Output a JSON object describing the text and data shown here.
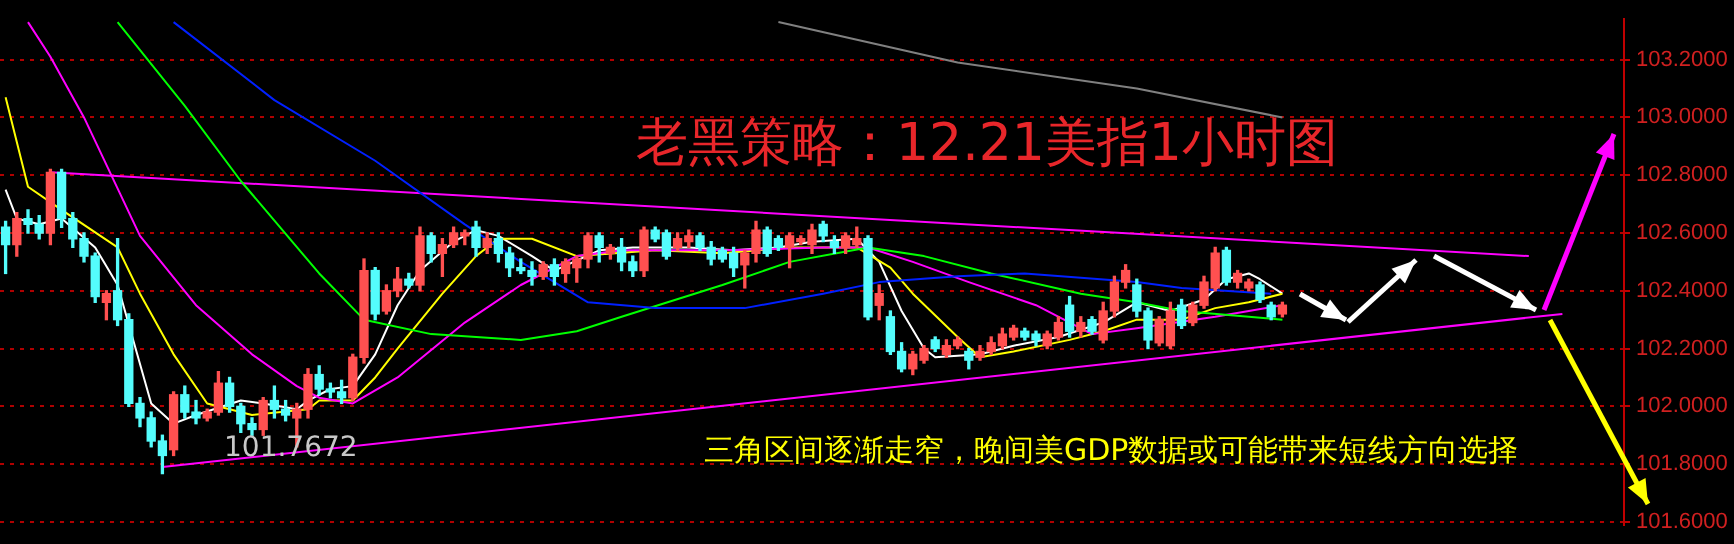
{
  "chart_data": {
    "type": "candlestick",
    "title": "老黑策略：12.21美指1小时图",
    "annotations": [
      "三角区间逐渐走窄，晚间美GDP数据或可能带来短线方向选择",
      "101.7672"
    ],
    "categories": [
      null,
      null,
      null,
      null,
      null,
      null,
      null,
      null,
      null,
      null,
      null,
      null,
      null,
      null,
      null,
      null,
      null,
      null,
      null,
      null,
      null,
      null,
      null,
      null,
      null,
      null,
      null,
      null,
      null,
      null,
      null,
      null,
      null,
      null,
      null,
      null,
      null,
      null,
      null,
      null,
      null,
      null,
      null,
      null,
      null,
      null,
      null,
      null,
      null,
      null,
      null,
      null,
      null,
      null,
      null,
      null,
      null,
      null,
      null,
      null,
      null,
      null,
      null,
      null,
      null,
      null,
      null,
      null,
      null,
      null,
      null,
      null,
      null,
      null,
      null,
      null,
      null,
      null,
      null,
      null,
      null,
      null,
      null,
      null,
      null,
      null,
      null,
      null,
      null,
      null,
      null,
      null,
      null,
      null,
      null,
      null,
      null,
      null,
      null,
      null,
      null,
      null,
      null,
      null,
      null,
      null,
      null,
      null,
      null,
      null,
      null,
      null,
      null,
      null,
      null,
      null,
      null,
      null,
      null,
      null,
      null,
      null,
      null,
      null,
      null,
      null,
      null,
      null,
      null,
      null,
      null,
      null,
      null,
      null,
      null,
      null,
      null,
      null,
      null,
      null,
      null,
      null,
      null,
      null,
      null
    ],
    "ohlc": [
      [
        102.62,
        102.64,
        102.46,
        102.56
      ],
      [
        102.56,
        102.67,
        102.52,
        102.65
      ],
      [
        102.65,
        102.68,
        102.6,
        102.63
      ],
      [
        102.63,
        102.66,
        102.58,
        102.6
      ],
      [
        102.6,
        102.82,
        102.56,
        102.81
      ],
      [
        102.81,
        102.82,
        102.62,
        102.65
      ],
      [
        102.65,
        102.67,
        102.55,
        102.58
      ],
      [
        102.58,
        102.6,
        102.5,
        102.52
      ],
      [
        102.52,
        102.53,
        102.36,
        102.38
      ],
      [
        102.36,
        102.4,
        102.3,
        102.39
      ],
      [
        102.4,
        102.58,
        102.28,
        102.3
      ],
      [
        102.3,
        102.32,
        102.0,
        102.01
      ],
      [
        102.01,
        102.03,
        101.93,
        101.96
      ],
      [
        101.96,
        101.98,
        101.86,
        101.88
      ],
      [
        101.88,
        101.9,
        101.7672,
        101.83
      ],
      [
        101.85,
        102.05,
        101.83,
        102.04
      ],
      [
        102.04,
        102.07,
        101.96,
        101.98
      ],
      [
        101.98,
        102.02,
        101.94,
        101.96
      ],
      [
        101.96,
        101.99,
        101.95,
        101.98
      ],
      [
        101.98,
        102.12,
        101.97,
        102.08
      ],
      [
        102.08,
        102.1,
        101.98,
        102.0
      ],
      [
        102.0,
        102.01,
        101.91,
        101.94
      ],
      [
        101.94,
        101.96,
        101.9,
        101.92
      ],
      [
        101.92,
        102.03,
        101.9,
        102.02
      ],
      [
        102.02,
        102.07,
        101.96,
        101.99
      ],
      [
        101.99,
        102.02,
        101.95,
        101.97
      ],
      [
        101.96,
        102.01,
        101.86,
        101.99
      ],
      [
        101.99,
        102.13,
        101.96,
        102.11
      ],
      [
        102.11,
        102.14,
        102.04,
        102.06
      ],
      [
        102.06,
        102.08,
        102.03,
        102.05
      ],
      [
        102.05,
        102.09,
        102.01,
        102.03
      ],
      [
        102.03,
        102.18,
        102.02,
        102.17
      ],
      [
        102.17,
        102.51,
        102.15,
        102.47
      ],
      [
        102.47,
        102.48,
        102.3,
        102.32
      ],
      [
        102.33,
        102.42,
        102.32,
        102.4
      ],
      [
        102.4,
        102.48,
        102.38,
        102.44
      ],
      [
        102.44,
        102.46,
        102.41,
        102.42
      ],
      [
        102.42,
        102.62,
        102.4,
        102.59
      ],
      [
        102.59,
        102.6,
        102.5,
        102.53
      ],
      [
        102.53,
        102.58,
        102.45,
        102.56
      ],
      [
        102.56,
        102.62,
        102.55,
        102.6
      ],
      [
        102.59,
        102.61,
        102.56,
        102.6
      ],
      [
        102.62,
        102.64,
        102.52,
        102.55
      ],
      [
        102.55,
        102.6,
        102.53,
        102.58
      ],
      [
        102.58,
        102.6,
        102.5,
        102.53
      ],
      [
        102.53,
        102.55,
        102.45,
        102.48
      ],
      [
        102.48,
        102.51,
        102.46,
        102.47
      ],
      [
        102.47,
        102.5,
        102.42,
        102.45
      ],
      [
        102.45,
        102.5,
        102.44,
        102.49
      ],
      [
        102.49,
        102.51,
        102.42,
        102.45
      ],
      [
        102.46,
        102.51,
        102.43,
        102.5
      ],
      [
        102.48,
        102.52,
        102.43,
        102.51
      ],
      [
        102.51,
        102.6,
        102.48,
        102.59
      ],
      [
        102.59,
        102.6,
        102.5,
        102.55
      ],
      [
        102.53,
        102.56,
        102.51,
        102.55
      ],
      [
        102.55,
        102.58,
        102.47,
        102.5
      ],
      [
        102.5,
        102.52,
        102.45,
        102.47
      ],
      [
        102.47,
        102.62,
        102.45,
        102.61
      ],
      [
        102.61,
        102.62,
        102.57,
        102.58
      ],
      [
        102.6,
        102.61,
        102.51,
        102.52
      ],
      [
        102.55,
        102.6,
        102.54,
        102.58
      ],
      [
        102.57,
        102.61,
        102.55,
        102.59
      ],
      [
        102.59,
        102.6,
        102.54,
        102.55
      ],
      [
        102.55,
        102.57,
        102.49,
        102.51
      ],
      [
        102.54,
        102.55,
        102.5,
        102.51
      ],
      [
        102.53,
        102.55,
        102.45,
        102.48
      ],
      [
        102.49,
        102.54,
        102.41,
        102.53
      ],
      [
        102.53,
        102.64,
        102.5,
        102.61
      ],
      [
        102.61,
        102.62,
        102.52,
        102.53
      ],
      [
        102.58,
        102.59,
        102.54,
        102.55
      ],
      [
        102.55,
        102.6,
        102.48,
        102.59
      ],
      [
        102.57,
        102.59,
        102.56,
        102.58
      ],
      [
        102.56,
        102.63,
        102.53,
        102.61
      ],
      [
        102.63,
        102.64,
        102.57,
        102.59
      ],
      [
        102.57,
        102.59,
        102.53,
        102.55
      ],
      [
        102.55,
        102.6,
        102.53,
        102.59
      ],
      [
        102.56,
        102.62,
        102.55,
        102.58
      ],
      [
        102.58,
        102.59,
        102.3,
        102.31
      ],
      [
        102.35,
        102.42,
        102.3,
        102.39
      ],
      [
        102.31,
        102.33,
        102.18,
        102.19
      ],
      [
        102.19,
        102.22,
        102.12,
        102.13
      ],
      [
        102.13,
        102.19,
        102.11,
        102.18
      ],
      [
        102.16,
        102.21,
        102.15,
        102.2
      ],
      [
        102.23,
        102.24,
        102.19,
        102.2
      ],
      [
        102.18,
        102.23,
        102.17,
        102.21
      ],
      [
        102.21,
        102.24,
        102.2,
        102.23
      ],
      [
        102.19,
        102.2,
        102.13,
        102.16
      ],
      [
        102.17,
        102.21,
        102.16,
        102.19
      ],
      [
        102.19,
        102.24,
        102.18,
        102.22
      ],
      [
        102.21,
        102.27,
        102.2,
        102.25
      ],
      [
        102.24,
        102.28,
        102.23,
        102.27
      ],
      [
        102.26,
        102.27,
        102.23,
        102.24
      ],
      [
        102.25,
        102.26,
        102.21,
        102.23
      ],
      [
        102.21,
        102.26,
        102.2,
        102.25
      ],
      [
        102.24,
        102.31,
        102.23,
        102.29
      ],
      [
        102.35,
        102.38,
        102.24,
        102.26
      ],
      [
        102.26,
        102.31,
        102.24,
        102.29
      ],
      [
        102.3,
        102.31,
        102.25,
        102.26
      ],
      [
        102.23,
        102.36,
        102.22,
        102.33
      ],
      [
        102.33,
        102.45,
        102.31,
        102.43
      ],
      [
        102.43,
        102.49,
        102.41,
        102.47
      ],
      [
        102.42,
        102.44,
        102.31,
        102.33
      ],
      [
        102.33,
        102.34,
        102.2,
        102.23
      ],
      [
        102.22,
        102.31,
        102.21,
        102.3
      ],
      [
        102.21,
        102.36,
        102.2,
        102.33
      ],
      [
        102.35,
        102.37,
        102.27,
        102.28
      ],
      [
        102.29,
        102.36,
        102.28,
        102.35
      ],
      [
        102.35,
        102.45,
        102.34,
        102.43
      ],
      [
        102.41,
        102.55,
        102.4,
        102.53
      ],
      [
        102.54,
        102.55,
        102.42,
        102.43
      ],
      [
        102.43,
        102.47,
        102.41,
        102.46
      ],
      [
        102.41,
        102.44,
        102.4,
        102.43
      ],
      [
        102.42,
        102.43,
        102.36,
        102.37
      ],
      [
        102.35,
        102.36,
        102.3,
        102.31
      ],
      [
        102.32,
        102.36,
        102.31,
        102.35
      ],
      null,
      null,
      null,
      null,
      null,
      null,
      null,
      null,
      null,
      null,
      null,
      null,
      null,
      null,
      null,
      null,
      null,
      null,
      null,
      null,
      null,
      null,
      null,
      null,
      null,
      null,
      null,
      null,
      null,
      null
    ],
    "colors": [
      "#54fcfc",
      "#ff5050",
      "#54fcfc",
      "#54fcfc",
      "#ff5050",
      "#54fcfc",
      "#54fcfc",
      "#54fcfc",
      "#54fcfc",
      "#ff5050",
      "#54fcfc",
      "#54fcfc",
      "#54fcfc",
      "#54fcfc",
      "#54fcfc",
      "#ff5050",
      "#54fcfc",
      "#54fcfc",
      "#ff5050",
      "#ff5050",
      "#54fcfc",
      "#54fcfc",
      "#54fcfc",
      "#ff5050",
      "#54fcfc",
      "#54fcfc",
      "#ff5050",
      "#ff5050",
      "#54fcfc",
      "#54fcfc",
      "#54fcfc",
      "#ff5050",
      "#ff5050",
      "#54fcfc",
      "#ff5050",
      "#ff5050",
      "#54fcfc",
      "#ff5050",
      "#54fcfc",
      "#ff5050",
      "#ff5050",
      "#ff5050",
      "#54fcfc",
      "#ff5050",
      "#54fcfc",
      "#54fcfc",
      "#54fcfc",
      "#54fcfc",
      "#ff5050",
      "#54fcfc",
      "#ff5050",
      "#ff5050",
      "#ff5050",
      "#54fcfc",
      "#ff5050",
      "#54fcfc",
      "#54fcfc",
      "#ff5050",
      "#54fcfc",
      "#54fcfc",
      "#ff5050",
      "#ff5050",
      "#54fcfc",
      "#54fcfc",
      "#54fcfc",
      "#54fcfc",
      "#ff5050",
      "#ff5050",
      "#54fcfc",
      "#54fcfc",
      "#ff5050",
      "#ff5050",
      "#ff5050",
      "#54fcfc",
      "#54fcfc",
      "#ff5050",
      "#ff5050",
      "#54fcfc",
      "#ff5050",
      "#54fcfc",
      "#54fcfc",
      "#ff5050",
      "#ff5050",
      "#54fcfc",
      "#ff5050",
      "#ff5050",
      "#54fcfc",
      "#ff5050",
      "#ff5050",
      "#ff5050",
      "#ff5050",
      "#54fcfc",
      "#54fcfc",
      "#ff5050",
      "#ff5050",
      "#54fcfc",
      "#ff5050",
      "#54fcfc",
      "#ff5050",
      "#ff5050",
      "#ff5050",
      "#54fcfc",
      "#54fcfc",
      "#ff5050",
      "#ff5050",
      "#54fcfc",
      "#ff5050",
      "#ff5050",
      "#ff5050",
      "#54fcfc",
      "#ff5050",
      "#ff5050",
      "#54fcfc",
      "#54fcfc",
      "#ff5050",
      null,
      null,
      null,
      null,
      null,
      null,
      null,
      null,
      null,
      null,
      null,
      null,
      null,
      null,
      null,
      null,
      null,
      null,
      null,
      null,
      null,
      null,
      null,
      null,
      null,
      null,
      null,
      null,
      null,
      null
    ],
    "series": [
      {
        "type": "line",
        "color": "#808080",
        "values": [
          null,
          null,
          null,
          null,
          null,
          null,
          null,
          null,
          null,
          null,
          null,
          null,
          null,
          null,
          null,
          null,
          null,
          null,
          null,
          null,
          null,
          null,
          null,
          null,
          null,
          null,
          null,
          null,
          null,
          null,
          null,
          null,
          null,
          null,
          null,
          null,
          null,
          null,
          null,
          null,
          null,
          null,
          null,
          null,
          null,
          null,
          null,
          null,
          null,
          null,
          null,
          null,
          null,
          null,
          null,
          null,
          null,
          null,
          null,
          null,
          null,
          null,
          null,
          null,
          null,
          null,
          null,
          null,
          null,
          103.33,
          null,
          null,
          null,
          null,
          null,
          null,
          null,
          null,
          null,
          null,
          null,
          null,
          null,
          null,
          null,
          103.19,
          null,
          null,
          null,
          null,
          null,
          null,
          null,
          null,
          null,
          null,
          null,
          null,
          null,
          null,
          null,
          103.1,
          null,
          null,
          null,
          null,
          null,
          null,
          null,
          null,
          null,
          null,
          null,
          null,
          103.0,
          null,
          null,
          null,
          null,
          null,
          null,
          null,
          null,
          null,
          null,
          null,
          null,
          null,
          null,
          null,
          null,
          null,
          null,
          null,
          null,
          null,
          null,
          null,
          null,
          null,
          null,
          null,
          null,
          null,
          null
        ]
      },
      {
        "type": "line",
        "color": "#0020ff",
        "values": [
          null,
          null,
          null,
          null,
          null,
          null,
          null,
          null,
          null,
          null,
          null,
          null,
          null,
          null,
          null,
          103.33,
          null,
          null,
          null,
          null,
          null,
          null,
          null,
          null,
          103.06,
          null,
          null,
          null,
          null,
          null,
          null,
          null,
          null,
          102.85,
          null,
          null,
          null,
          null,
          null,
          null,
          null,
          102.63,
          null,
          null,
          null,
          null,
          102.5,
          null,
          null,
          null,
          null,
          null,
          102.36,
          null,
          null,
          null,
          null,
          null,
          102.34,
          null,
          null,
          null,
          null,
          null,
          null,
          null,
          102.34,
          null,
          null,
          null,
          null,
          null,
          null,
          102.39,
          null,
          null,
          null,
          null,
          102.43,
          null,
          null,
          null,
          null,
          null,
          null,
          102.45,
          null,
          null,
          null,
          null,
          null,
          102.46,
          null,
          null,
          null,
          null,
          null,
          null,
          null,
          null,
          null,
          102.43,
          null,
          null,
          null,
          102.41,
          null,
          null,
          null,
          null,
          null,
          null,
          null,
          102.39,
          null,
          null,
          null,
          null,
          null,
          null,
          null,
          null,
          null,
          null,
          null,
          null,
          null,
          null,
          null,
          null,
          null,
          null,
          null,
          null,
          null,
          null,
          null,
          null,
          null,
          null,
          null,
          null,
          null,
          null,
          null
        ]
      },
      {
        "type": "line",
        "color": "#00ff00",
        "values": [
          null,
          null,
          null,
          null,
          null,
          null,
          null,
          null,
          null,
          null,
          103.33,
          null,
          null,
          null,
          null,
          null,
          103.04,
          null,
          null,
          null,
          null,
          102.78,
          null,
          null,
          null,
          null,
          null,
          null,
          102.46,
          null,
          null,
          null,
          102.3,
          null,
          null,
          null,
          null,
          null,
          102.25,
          null,
          null,
          null,
          null,
          null,
          null,
          null,
          102.23,
          null,
          null,
          null,
          null,
          102.26,
          null,
          null,
          null,
          102.31,
          null,
          null,
          null,
          null,
          null,
          null,
          null,
          null,
          102.42,
          null,
          null,
          null,
          null,
          null,
          102.5,
          null,
          null,
          null,
          null,
          null,
          null,
          102.55,
          null,
          null,
          null,
          null,
          102.52,
          null,
          null,
          null,
          null,
          null,
          102.46,
          null,
          null,
          null,
          null,
          null,
          null,
          null,
          102.39,
          null,
          null,
          null,
          null,
          102.36,
          null,
          null,
          null,
          102.33,
          null,
          null,
          null,
          null,
          null,
          102.31,
          null,
          null,
          102.3,
          null,
          null,
          null,
          null,
          null,
          null,
          null,
          null,
          null,
          null,
          null,
          null,
          null,
          null,
          null,
          null,
          null,
          null,
          null,
          null,
          null,
          null,
          null,
          null,
          null,
          null,
          null,
          null,
          null,
          null
        ]
      },
      {
        "type": "line",
        "color": "#ff00ff",
        "values": [
          null,
          null,
          103.33,
          null,
          103.21,
          null,
          null,
          103.0,
          null,
          null,
          null,
          null,
          102.59,
          null,
          null,
          null,
          null,
          102.35,
          null,
          null,
          null,
          null,
          102.18,
          null,
          null,
          null,
          102.07,
          null,
          102.03,
          null,
          null,
          102.01,
          null,
          null,
          null,
          102.1,
          null,
          null,
          null,
          null,
          null,
          102.29,
          null,
          null,
          null,
          null,
          102.42,
          null,
          null,
          null,
          null,
          102.52,
          null,
          null,
          null,
          102.54,
          null,
          null,
          null,
          null,
          null,
          null,
          null,
          null,
          102.54,
          null,
          null,
          null,
          null,
          null,
          null,
          null,
          null,
          102.55,
          null,
          null,
          null,
          102.55,
          null,
          null,
          null,
          102.5,
          null,
          null,
          null,
          null,
          102.43,
          null,
          null,
          null,
          null,
          null,
          102.35,
          null,
          null,
          null,
          null,
          102.25,
          null,
          null,
          null,
          102.27,
          null,
          null,
          null,
          null,
          null,
          null,
          102.31,
          null,
          null,
          102.33,
          null,
          null,
          102.35,
          null,
          null,
          null,
          null,
          null,
          null,
          null,
          null,
          null,
          null,
          null,
          null,
          null,
          null,
          null,
          null,
          null,
          null,
          null,
          null,
          null,
          null,
          null,
          null,
          null,
          null,
          null,
          null,
          null,
          null
        ]
      },
      {
        "type": "line",
        "color": "#ffff00",
        "values": [
          103.07,
          null,
          102.76,
          null,
          null,
          102.68,
          null,
          null,
          null,
          null,
          102.55,
          null,
          102.39,
          null,
          null,
          102.18,
          null,
          null,
          102.01,
          null,
          null,
          null,
          101.97,
          null,
          null,
          null,
          null,
          101.99,
          102.02,
          null,
          null,
          102.02,
          null,
          102.1,
          null,
          102.2,
          null,
          null,
          null,
          102.39,
          null,
          null,
          102.52,
          null,
          102.58,
          null,
          null,
          102.58,
          null,
          null,
          null,
          102.52,
          null,
          null,
          null,
          null,
          null,
          null,
          102.54,
          null,
          null,
          null,
          null,
          null,
          102.53,
          null,
          null,
          null,
          null,
          null,
          102.55,
          null,
          null,
          null,
          null,
          null,
          102.55,
          null,
          null,
          102.48,
          null,
          102.39,
          null,
          null,
          null,
          102.24,
          null,
          102.17,
          null,
          null,
          102.19,
          null,
          null,
          null,
          null,
          102.23,
          null,
          null,
          102.26,
          null,
          null,
          102.3,
          null,
          null,
          null,
          102.3,
          null,
          null,
          102.34,
          null,
          null,
          102.36,
          null,
          null,
          102.39,
          null,
          null,
          null,
          null,
          null,
          null,
          null,
          null,
          null,
          null,
          null,
          null,
          null,
          null,
          null,
          null,
          null,
          null,
          null,
          null,
          null,
          null,
          null,
          null,
          null,
          null,
          null,
          null,
          null,
          null
        ]
      },
      {
        "type": "line",
        "color": "#ffffff",
        "values": [
          102.75,
          102.65,
          null,
          102.63,
          null,
          102.65,
          null,
          null,
          102.55,
          null,
          102.42,
          null,
          null,
          102.01,
          null,
          101.94,
          null,
          101.97,
          null,
          null,
          null,
          102.02,
          null,
          102.01,
          null,
          null,
          101.99,
          102.02,
          null,
          102.06,
          null,
          102.07,
          null,
          102.18,
          null,
          102.35,
          null,
          102.47,
          null,
          null,
          102.57,
          null,
          102.61,
          null,
          102.59,
          null,
          null,
          102.52,
          null,
          102.47,
          null,
          null,
          null,
          102.54,
          null,
          null,
          102.55,
          null,
          null,
          null,
          null,
          102.55,
          null,
          null,
          null,
          102.54,
          null,
          null,
          null,
          102.55,
          null,
          null,
          102.57,
          null,
          null,
          null,
          102.58,
          null,
          102.5,
          null,
          102.33,
          null,
          102.2,
          102.17,
          null,
          null,
          null,
          102.18,
          null,
          null,
          102.21,
          null,
          null,
          null,
          102.24,
          null,
          null,
          null,
          102.29,
          null,
          null,
          102.36,
          null,
          null,
          102.33,
          null,
          null,
          102.37,
          null,
          102.44,
          null,
          102.46,
          102.44,
          null,
          102.39,
          null,
          null,
          null,
          null,
          null,
          null,
          null,
          null,
          null,
          null,
          null,
          null,
          null,
          null,
          null,
          null,
          null,
          null,
          null,
          null,
          null,
          null,
          null,
          null,
          null,
          null,
          null,
          null,
          null,
          null
        ]
      },
      {
        "type": "line",
        "color": "#ff00ff",
        "values": [
          null,
          null,
          null,
          null,
          102.81,
          null,
          null,
          null,
          null,
          null,
          null,
          null,
          null,
          null,
          null,
          null,
          null,
          null,
          null,
          null,
          null,
          null,
          null,
          null,
          null,
          null,
          null,
          null,
          null,
          null,
          null,
          null,
          null,
          null,
          null,
          null,
          null,
          null,
          null,
          null,
          null,
          null,
          null,
          null,
          null,
          null,
          null,
          null,
          null,
          null,
          null,
          null,
          null,
          null,
          null,
          null,
          null,
          null,
          null,
          null,
          null,
          null,
          null,
          null,
          null,
          null,
          null,
          null,
          null,
          null,
          null,
          null,
          null,
          null,
          null,
          null,
          null,
          null,
          null,
          null,
          null,
          null,
          null,
          null,
          null,
          null,
          null,
          null,
          null,
          null,
          null,
          null,
          null,
          null,
          null,
          null,
          null,
          null,
          null,
          null,
          null,
          null,
          null,
          null,
          null,
          null,
          null,
          null,
          null,
          null,
          null,
          null,
          null,
          null,
          null,
          null,
          null,
          null,
          null,
          null,
          null,
          null,
          null,
          null,
          null,
          null,
          null,
          null,
          null,
          null,
          null,
          null,
          null,
          null,
          null,
          null,
          102.52,
          null,
          null,
          null,
          null,
          null,
          null,
          null,
          null
        ]
      },
      {
        "type": "line",
        "color": "#ff00ff",
        "values": [
          null,
          null,
          null,
          null,
          null,
          null,
          null,
          null,
          null,
          null,
          null,
          null,
          null,
          null,
          101.79,
          null,
          null,
          null,
          null,
          null,
          null,
          null,
          null,
          null,
          null,
          null,
          null,
          null,
          null,
          null,
          null,
          null,
          null,
          null,
          null,
          null,
          null,
          null,
          null,
          null,
          null,
          null,
          null,
          null,
          null,
          null,
          null,
          null,
          null,
          null,
          null,
          null,
          null,
          null,
          null,
          null,
          null,
          null,
          null,
          null,
          null,
          null,
          null,
          null,
          null,
          null,
          null,
          null,
          null,
          null,
          null,
          null,
          null,
          null,
          null,
          null,
          null,
          null,
          null,
          null,
          null,
          null,
          null,
          null,
          null,
          null,
          null,
          null,
          null,
          null,
          null,
          null,
          null,
          null,
          null,
          null,
          null,
          null,
          null,
          null,
          null,
          null,
          null,
          null,
          null,
          null,
          null,
          null,
          null,
          null,
          null,
          null,
          null,
          null,
          null,
          null,
          null,
          null,
          null,
          null,
          null,
          null,
          null,
          null,
          null,
          null,
          null,
          null,
          null,
          null,
          null,
          null,
          null,
          null,
          null,
          null,
          null,
          null,
          null,
          102.32,
          null,
          null,
          null,
          null,
          null
        ]
      }
    ],
    "ylim": [
      101.59,
      103.34
    ],
    "yticks": [
      {
        "value": 101.6,
        "label": "101.6000"
      },
      {
        "value": 101.8,
        "label": "101.8000"
      },
      {
        "value": 102,
        "label": "102.0000"
      },
      {
        "value": 102.2,
        "label": "102.2000"
      },
      {
        "value": 102.4,
        "label": "102.4000"
      },
      {
        "value": 102.6,
        "label": "102.6000"
      },
      {
        "value": 102.8,
        "label": "102.8000"
      },
      {
        "value": 103,
        "label": "103.0000"
      },
      {
        "value": 103.2,
        "label": "103.2000"
      }
    ],
    "tick_labels": "y",
    "grid": "y"
  }
}
